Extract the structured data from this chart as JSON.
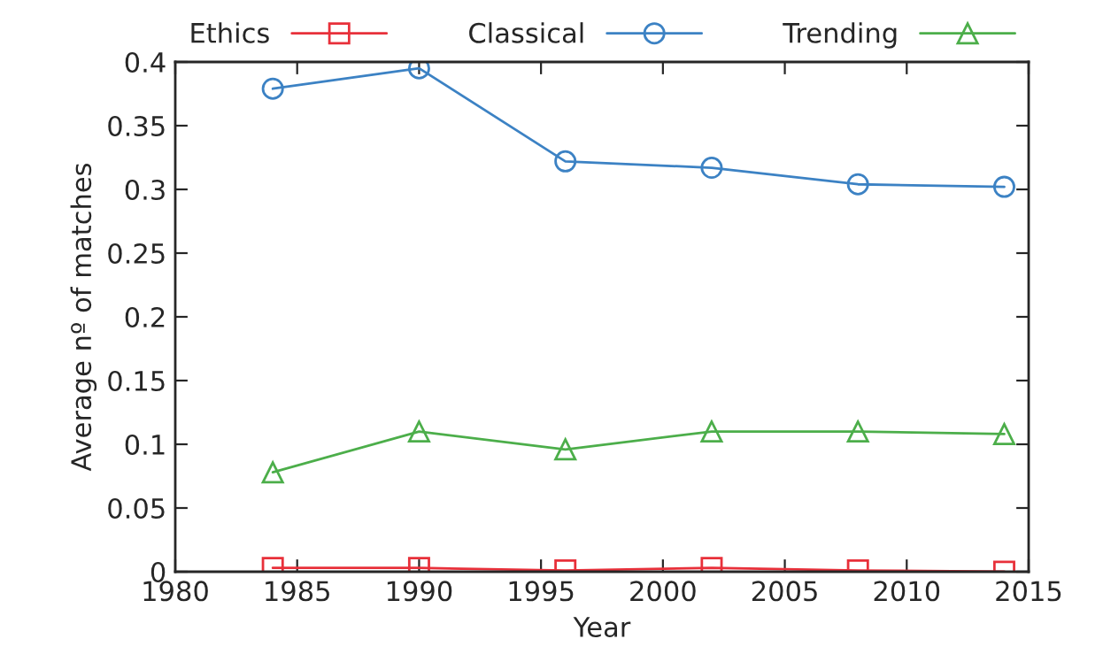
{
  "chart_data": {
    "type": "line",
    "xlabel": "Year",
    "ylabel": "Average nº of matches",
    "x": [
      1984,
      1990,
      1996,
      2002,
      2008,
      2014
    ],
    "series": [
      {
        "name": "Ethics",
        "color": "#e8303a",
        "marker": "square",
        "values": [
          0.003,
          0.003,
          0.001,
          0.003,
          0.001,
          0.0
        ]
      },
      {
        "name": "Classical",
        "color": "#3c82c4",
        "marker": "circle",
        "values": [
          0.379,
          0.395,
          0.322,
          0.317,
          0.304,
          0.302
        ]
      },
      {
        "name": "Trending",
        "color": "#4cae4a",
        "marker": "triangle",
        "values": [
          0.078,
          0.11,
          0.096,
          0.11,
          0.11,
          0.108
        ]
      }
    ],
    "xlim": [
      1980,
      2015
    ],
    "xticks": [
      1980,
      1985,
      1990,
      1995,
      2000,
      2005,
      2010,
      2015
    ],
    "ylim": [
      0,
      0.4
    ],
    "yticks": [
      0,
      0.05,
      0.1,
      0.15,
      0.2,
      0.25,
      0.3,
      0.35,
      0.4
    ],
    "grid": false,
    "legend": "top",
    "line_style": "solid"
  }
}
